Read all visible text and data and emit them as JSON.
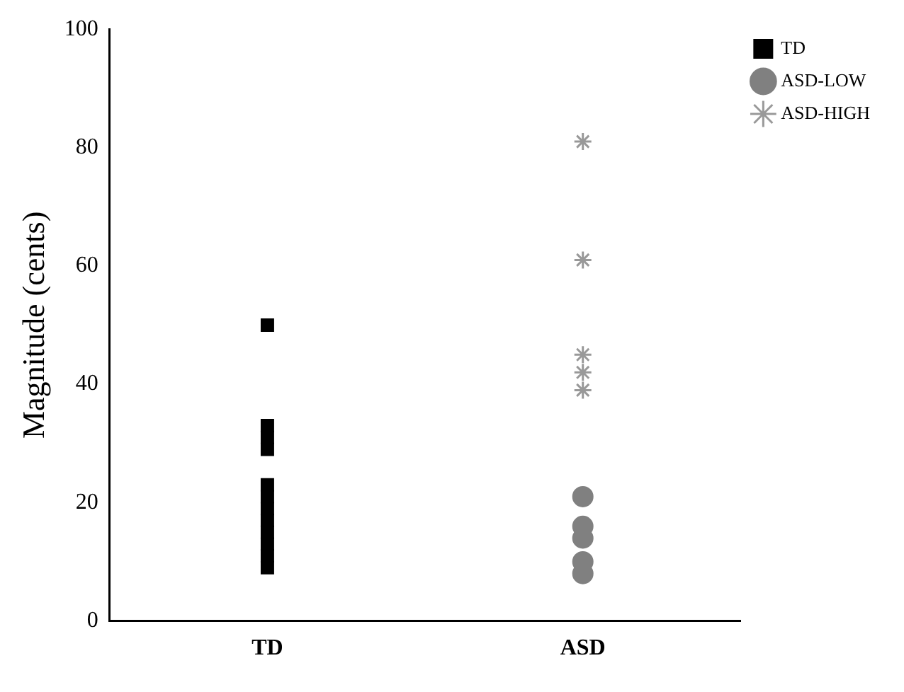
{
  "chart_data": {
    "type": "scatter",
    "ylabel": "Magnitude (cents)",
    "categories": [
      "TD",
      "ASD"
    ],
    "ylim": [
      0,
      100
    ],
    "yticks": [
      0,
      20,
      40,
      60,
      80,
      100
    ],
    "grid": false,
    "legend": "top right",
    "series": [
      {
        "name": "TD",
        "color": "#000000",
        "marker": "square",
        "x": [
          "TD",
          "TD",
          "TD",
          "TD",
          "TD",
          "TD",
          "TD",
          "TD",
          "TD",
          "TD",
          "TD",
          "TD"
        ],
        "values": [
          50,
          33,
          31,
          29,
          23,
          21,
          19,
          17,
          15,
          13,
          11,
          9
        ]
      },
      {
        "name": "ASD-LOW",
        "color": "#808080",
        "marker": "circle",
        "x": [
          "ASD",
          "ASD",
          "ASD",
          "ASD",
          "ASD"
        ],
        "values": [
          21,
          16,
          14,
          10,
          8
        ]
      },
      {
        "name": "ASD-HIGH",
        "color": "#999999",
        "marker": "cross",
        "x": [
          "ASD",
          "ASD",
          "ASD",
          "ASD",
          "ASD"
        ],
        "values": [
          81,
          61,
          45,
          42,
          39
        ]
      }
    ]
  }
}
